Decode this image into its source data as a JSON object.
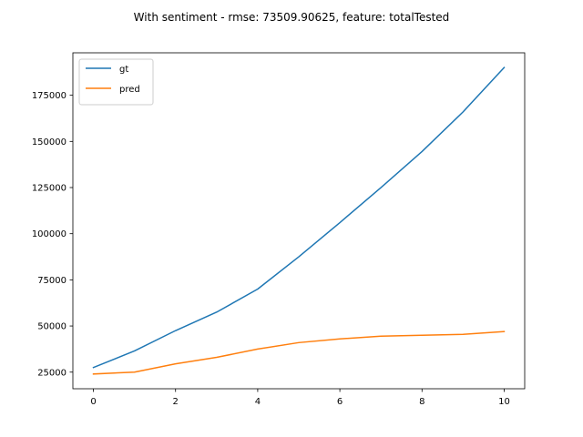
{
  "chart_data": {
    "type": "line",
    "title": "With sentiment - rmse: 73509.90625, feature: totalTested",
    "xlabel": "",
    "ylabel": "",
    "xlim": [
      -0.5,
      10.5
    ],
    "ylim": [
      16000,
      198000
    ],
    "x_ticks": [
      0,
      2,
      4,
      6,
      8,
      10
    ],
    "y_ticks": [
      25000,
      50000,
      75000,
      100000,
      125000,
      150000,
      175000
    ],
    "x": [
      0,
      1,
      2,
      3,
      4,
      5,
      6,
      7,
      8,
      9,
      10
    ],
    "series": [
      {
        "name": "gt",
        "color": "#1f77b4",
        "values": [
          27500,
          36500,
          47500,
          57500,
          70000,
          87500,
          106000,
          125000,
          144500,
          166000,
          190000
        ]
      },
      {
        "name": "pred",
        "color": "#ff7f0e",
        "values": [
          24000,
          25000,
          29500,
          33000,
          37500,
          41000,
          43000,
          44500,
          45000,
          45500,
          47000
        ]
      }
    ],
    "grid": false,
    "legend_position": "top-left"
  }
}
